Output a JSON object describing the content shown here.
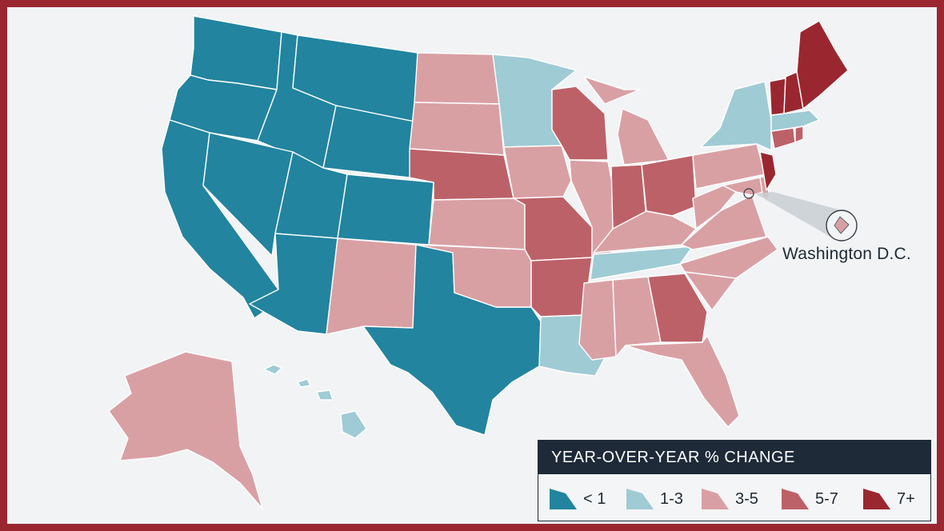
{
  "colors": {
    "lt1": "#22849f",
    "r1to3": "#9fcbd4",
    "r3to5": "#d9a0a4",
    "r5to7": "#bd6168",
    "r7plus": "#9a2730",
    "frame": "#9a2730",
    "background": "#f1f3f5",
    "legend_header": "#1e2a38"
  },
  "callout": {
    "label": "Washington D.C."
  },
  "legend": {
    "title": "YEAR-OVER-YEAR % CHANGE",
    "items": [
      {
        "label": "< 1",
        "color": "#22849f"
      },
      {
        "label": "1-3",
        "color": "#9fcbd4"
      },
      {
        "label": "3-5",
        "color": "#d9a0a4"
      },
      {
        "label": "5-7",
        "color": "#bd6168"
      },
      {
        "label": "7+",
        "color": "#9a2730"
      }
    ]
  },
  "states": [
    {
      "name": "Washington",
      "category": "< 1"
    },
    {
      "name": "Oregon",
      "category": "< 1"
    },
    {
      "name": "California",
      "category": "< 1"
    },
    {
      "name": "Idaho",
      "category": "< 1"
    },
    {
      "name": "Nevada",
      "category": "< 1"
    },
    {
      "name": "Montana",
      "category": "< 1"
    },
    {
      "name": "Wyoming",
      "category": "< 1"
    },
    {
      "name": "Utah",
      "category": "< 1"
    },
    {
      "name": "Colorado",
      "category": "< 1"
    },
    {
      "name": "Arizona",
      "category": "< 1"
    },
    {
      "name": "Texas",
      "category": "< 1"
    },
    {
      "name": "Minnesota",
      "category": "1-3"
    },
    {
      "name": "New York",
      "category": "1-3"
    },
    {
      "name": "Massachusetts",
      "category": "1-3"
    },
    {
      "name": "Tennessee",
      "category": "1-3"
    },
    {
      "name": "Louisiana",
      "category": "1-3"
    },
    {
      "name": "Hawaii",
      "category": "1-3"
    },
    {
      "name": "North Dakota",
      "category": "3-5"
    },
    {
      "name": "South Dakota",
      "category": "3-5"
    },
    {
      "name": "Kansas",
      "category": "3-5"
    },
    {
      "name": "Oklahoma",
      "category": "3-5"
    },
    {
      "name": "New Mexico",
      "category": "3-5"
    },
    {
      "name": "Iowa",
      "category": "3-5"
    },
    {
      "name": "Illinois",
      "category": "3-5"
    },
    {
      "name": "Michigan",
      "category": "3-5"
    },
    {
      "name": "Kentucky",
      "category": "3-5"
    },
    {
      "name": "West Virginia",
      "category": "3-5"
    },
    {
      "name": "Virginia",
      "category": "3-5"
    },
    {
      "name": "North Carolina",
      "category": "3-5"
    },
    {
      "name": "South Carolina",
      "category": "3-5"
    },
    {
      "name": "Mississippi",
      "category": "3-5"
    },
    {
      "name": "Alabama",
      "category": "3-5"
    },
    {
      "name": "Florida",
      "category": "3-5"
    },
    {
      "name": "Pennsylvania",
      "category": "3-5"
    },
    {
      "name": "Maryland",
      "category": "3-5"
    },
    {
      "name": "Delaware",
      "category": "3-5"
    },
    {
      "name": "Washington D.C.",
      "category": "3-5"
    },
    {
      "name": "Alaska",
      "category": "3-5"
    },
    {
      "name": "Nebraska",
      "category": "5-7"
    },
    {
      "name": "Wisconsin",
      "category": "5-7"
    },
    {
      "name": "Missouri",
      "category": "5-7"
    },
    {
      "name": "Arkansas",
      "category": "5-7"
    },
    {
      "name": "Indiana",
      "category": "5-7"
    },
    {
      "name": "Ohio",
      "category": "5-7"
    },
    {
      "name": "Georgia",
      "category": "5-7"
    },
    {
      "name": "Connecticut",
      "category": "5-7"
    },
    {
      "name": "Rhode Island",
      "category": "5-7"
    },
    {
      "name": "Maine",
      "category": "7+"
    },
    {
      "name": "Vermont",
      "category": "7+"
    },
    {
      "name": "New Hampshire",
      "category": "7+"
    },
    {
      "name": "New Jersey",
      "category": "7+"
    }
  ]
}
